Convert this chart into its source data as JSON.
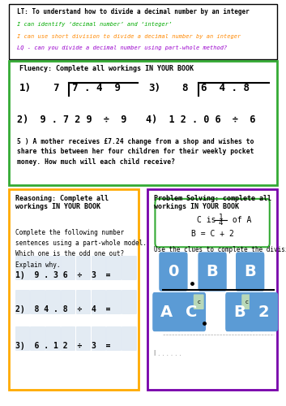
{
  "title_lt": "LT: To understand how to divide a decimal number by an integer",
  "sc1": "I can identify ‘decimal number’ and ‘integer’",
  "sc2": "I can use short division to divide a decimal number by an integer",
  "sc3": "LQ - can you divide a decimal number using part-whole method?",
  "sc1_color": "#00aa00",
  "sc2_color": "#ff8800",
  "sc3_color": "#9900cc",
  "fluency_title": "Fluency: Complete all workings IN YOUR BOOK",
  "fluency_border": "#33aa33",
  "q5": "5 ) A mother receives £7.24 change from a shop and wishes to\nshare this between her four children for their weekly pocket\nmoney. How much will each child receive?",
  "reasoning_title": "Reasoning: Complete all\nworkings IN YOUR BOOK",
  "reasoning_border": "#ffaa00",
  "reasoning_text": "Complete the following number\nsentences using a part-whole model.\nWhich one is the odd one out?\nExplain why.",
  "reasoning_q1": "1)  9 . 3 6  ÷  3  =",
  "reasoning_q2": "2)  8 4 . 8  ÷  4  =",
  "reasoning_q3": "3)  6 . 1 2  ÷  3  =",
  "ps_title": "Problem Solving: complete all\nworkings IN YOUR BOOK",
  "ps_border": "#7700aa",
  "ps_use_clues": "Use the clues to complete the division.",
  "bg_color": "#ffffff",
  "grid_color": "#c8d8e8",
  "tile_color": "#5b9bd5",
  "tile_text_color": "#ffffff",
  "small_tile_color": "#b8d8b8"
}
